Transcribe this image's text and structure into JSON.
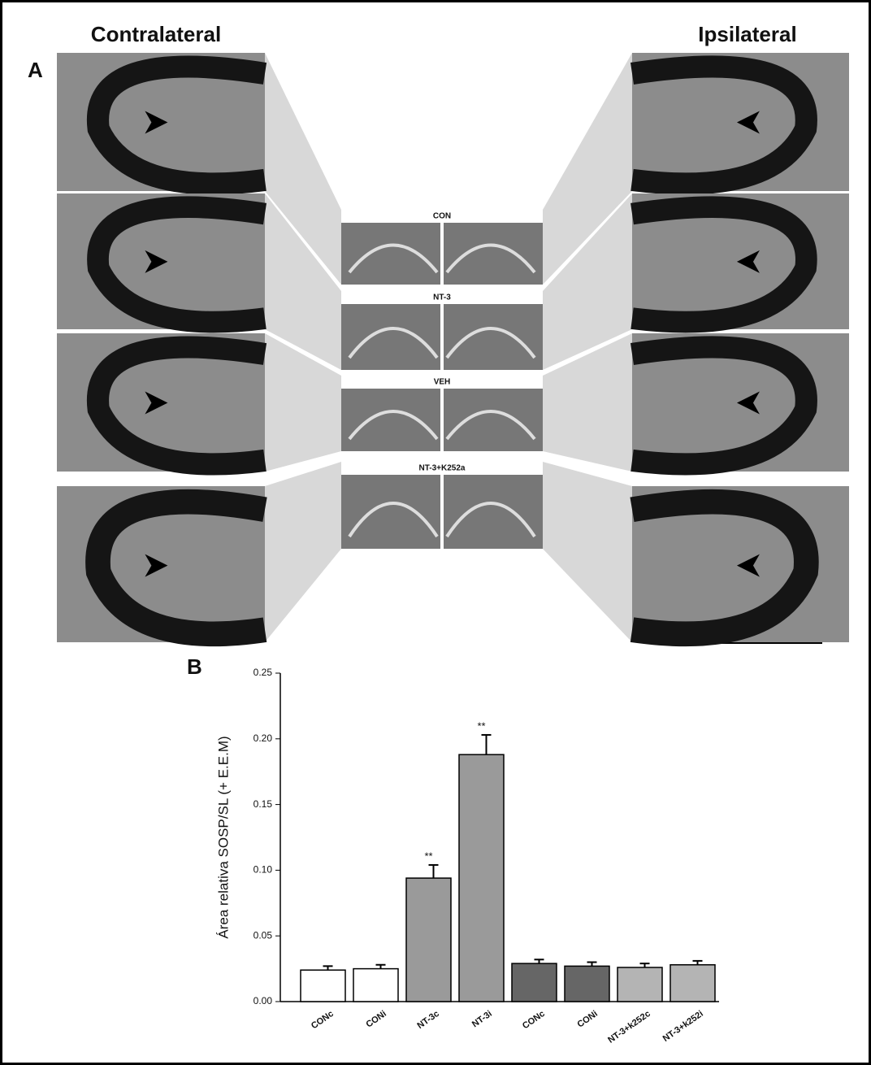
{
  "panel_a": {
    "label": "A",
    "title_left": "Contralateral",
    "title_right": "Ipsilateral",
    "sections": [
      "CON",
      "NT-3",
      "VEH",
      "NT-3+K252a"
    ]
  },
  "panel_b": {
    "label": "B"
  },
  "chart_data": {
    "type": "bar",
    "y_label": "Área relativa SOSP/SL (+ E.E.M)",
    "categories": [
      "CONc",
      "CONi",
      "NT-3c",
      "NT-3i",
      "CONc",
      "CONi",
      "NT-3+k252c",
      "NT-3+k252i"
    ],
    "values": [
      0.024,
      0.025,
      0.094,
      0.188,
      0.029,
      0.027,
      0.026,
      0.028
    ],
    "errors": [
      0.003,
      0.003,
      0.01,
      0.015,
      0.003,
      0.003,
      0.003,
      0.003
    ],
    "colors": [
      "#ffffff",
      "#ffffff",
      "#9a9a9a",
      "#9a9a9a",
      "#666666",
      "#666666",
      "#b4b4b4",
      "#b4b4b4"
    ],
    "significance": [
      null,
      null,
      "**",
      "**",
      null,
      null,
      null,
      null
    ],
    "ylim": [
      0,
      0.25
    ],
    "yticks": [
      {
        "value": 0,
        "label": "0.00"
      },
      0.05,
      {
        "value": 0.1,
        "label": "0.10"
      },
      0.15,
      {
        "value": 0.2,
        "label": "0.20"
      },
      0.25
    ]
  }
}
